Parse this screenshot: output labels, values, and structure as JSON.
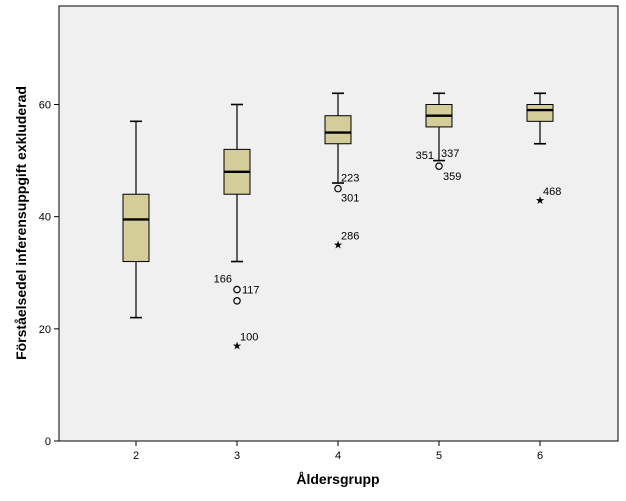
{
  "chart_data": {
    "type": "boxplot",
    "title": "",
    "xlabel": "Åldersgrupp",
    "ylabel": "Förståelsedel inferensuppgift exkluderad",
    "ylim": [
      0,
      76
    ],
    "yticks": [
      0,
      20,
      40,
      60
    ],
    "categories": [
      "2",
      "3",
      "4",
      "5",
      "6"
    ],
    "grid": false,
    "colors": {
      "plot_bg": "#f0f0f0",
      "box_fill": "#d4cd99",
      "stroke": "#000000"
    },
    "boxes": [
      {
        "category": "2",
        "whisker_low": 22,
        "q1": 32,
        "median": 39.5,
        "q3": 44,
        "whisker_high": 57,
        "outliers": []
      },
      {
        "category": "3",
        "whisker_low": 32,
        "q1": 44,
        "median": 48,
        "q3": 52,
        "whisker_high": 60,
        "outliers": [
          {
            "value": 27,
            "marker": "circle",
            "labels": [
              "166",
              "117"
            ]
          },
          {
            "value": 25,
            "marker": "circle",
            "labels": []
          },
          {
            "value": 17,
            "marker": "star",
            "labels": [
              "100"
            ]
          }
        ]
      },
      {
        "category": "4",
        "whisker_low": 46,
        "q1": 53,
        "median": 55,
        "q3": 58,
        "whisker_high": 62,
        "outliers": [
          {
            "value": 45,
            "marker": "circle",
            "labels": [
              "223",
              "301"
            ]
          },
          {
            "value": 35,
            "marker": "star",
            "labels": [
              "286"
            ]
          }
        ]
      },
      {
        "category": "5",
        "whisker_low": 50,
        "q1": 56,
        "median": 58,
        "q3": 60,
        "whisker_high": 62,
        "outliers": [
          {
            "value": 49,
            "marker": "circle",
            "labels": [
              "351",
              "337",
              "359"
            ]
          }
        ]
      },
      {
        "category": "6",
        "whisker_low": 53,
        "q1": 57,
        "median": 59,
        "q3": 60,
        "whisker_high": 62,
        "outliers": [
          {
            "value": 43,
            "marker": "star",
            "labels": [
              "468"
            ]
          }
        ]
      }
    ]
  }
}
